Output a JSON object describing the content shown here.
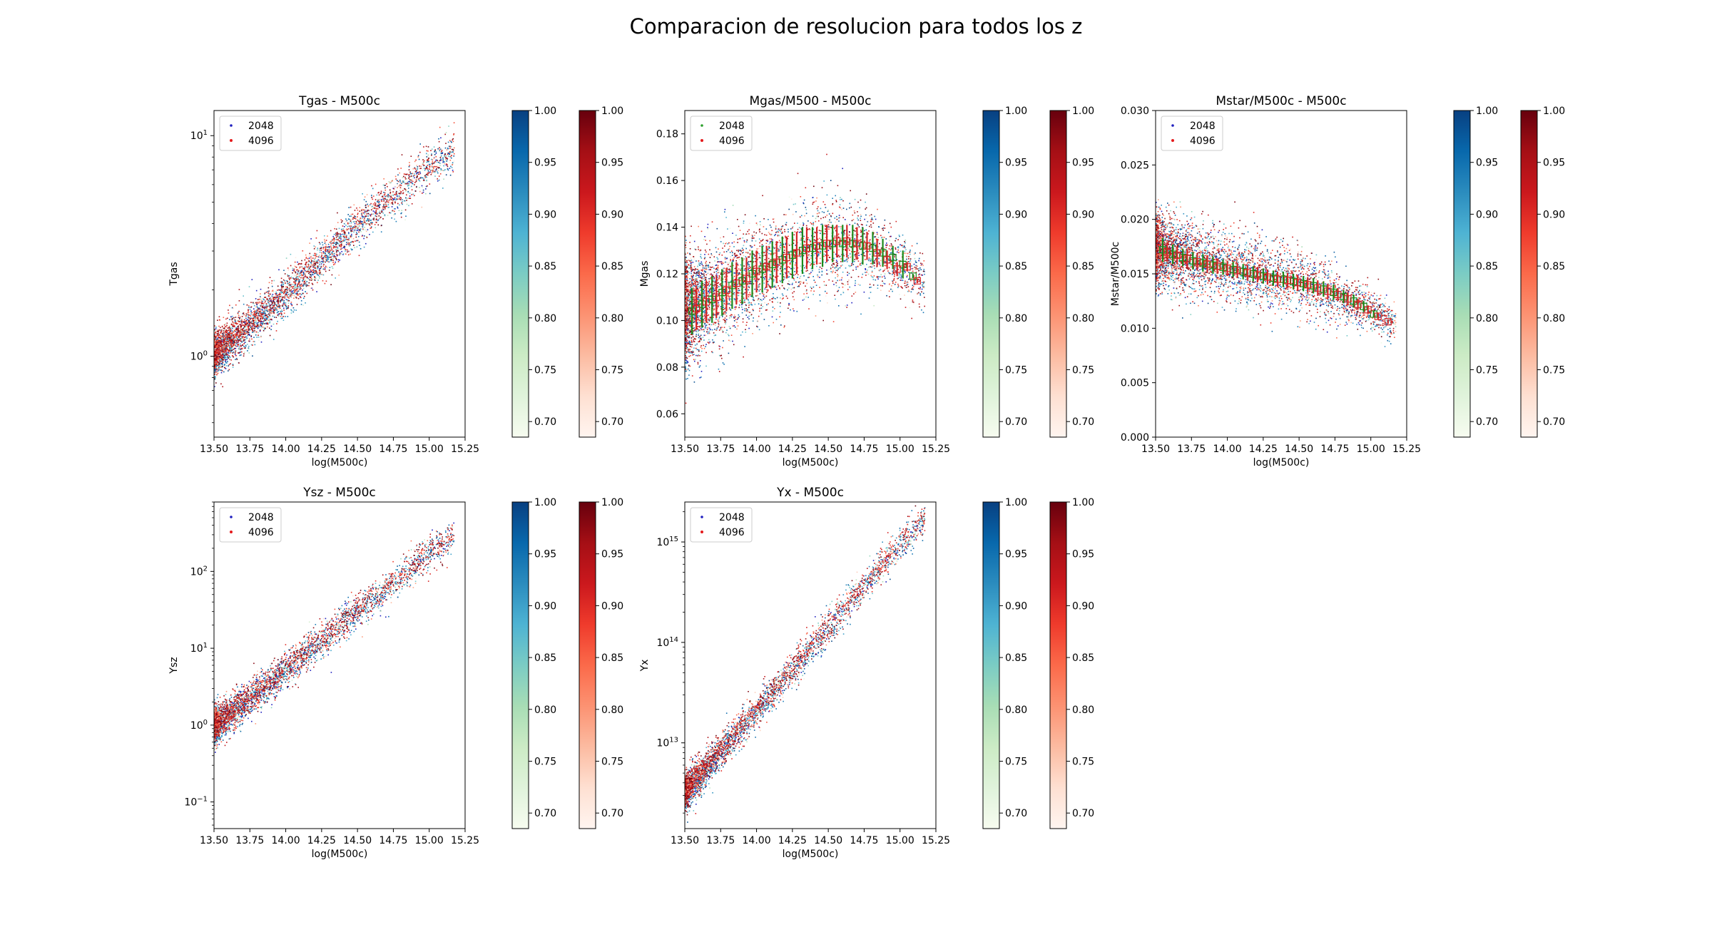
{
  "figure": {
    "title": "Comparacion de resolucion para todos los z"
  },
  "colorbar": {
    "ticks": [
      "0.70",
      "0.75",
      "0.80",
      "0.85",
      "0.90",
      "0.95",
      "1.00"
    ],
    "range": [
      0.685,
      1.0
    ]
  },
  "colors": {
    "blue": "#2166ac",
    "red": "#d62728",
    "green": "#1a8a1a",
    "marker_2048": "#1f1fbf",
    "marker_4096": "#e41a1c",
    "marker_green": "#2ca02c"
  },
  "chart_data": [
    {
      "type": "scatter",
      "title": "Tgas - M500c",
      "xlabel": "log(M500c)",
      "ylabel": "Tgas",
      "xlim": [
        13.5,
        15.25
      ],
      "ylim": [
        0.43,
        13.0
      ],
      "yscale": "log",
      "xticks": [
        "13.50",
        "13.75",
        "14.00",
        "14.25",
        "14.50",
        "14.75",
        "15.00",
        "15.25"
      ],
      "yticks": [
        {
          "value": 1,
          "label": "10^0"
        },
        {
          "value": 10,
          "label": "10^1"
        }
      ],
      "legend": {
        "entries": [
          "2048",
          "4096"
        ],
        "placement": "upper left"
      },
      "series": [
        {
          "name": "2048",
          "trend": [
            [
              13.5,
              1.0
            ],
            [
              14.0,
              1.9
            ],
            [
              14.5,
              3.9
            ],
            [
              15.0,
              7.2
            ],
            [
              15.2,
              8.8
            ]
          ],
          "spread_dex": 0.05
        },
        {
          "name": "4096",
          "trend": [
            [
              13.5,
              1.05
            ],
            [
              14.0,
              1.95
            ],
            [
              14.5,
              4.0
            ],
            [
              15.0,
              7.4
            ],
            [
              15.2,
              9.0
            ]
          ],
          "spread_dex": 0.05
        }
      ],
      "binned_means": []
    },
    {
      "type": "scatter",
      "title": "Mgas/M500 - M500c",
      "xlabel": "log(M500c)",
      "ylabel": "Mgas",
      "xlim": [
        13.5,
        15.25
      ],
      "ylim": [
        0.05,
        0.19
      ],
      "yscale": "linear",
      "xticks": [
        "13.50",
        "13.75",
        "14.00",
        "14.25",
        "14.50",
        "14.75",
        "15.00",
        "15.25"
      ],
      "yticks": [
        {
          "value": 0.06,
          "label": "0.06"
        },
        {
          "value": 0.08,
          "label": "0.08"
        },
        {
          "value": 0.1,
          "label": "0.10"
        },
        {
          "value": 0.12,
          "label": "0.12"
        },
        {
          "value": 0.14,
          "label": "0.14"
        },
        {
          "value": 0.16,
          "label": "0.16"
        },
        {
          "value": 0.18,
          "label": "0.18"
        }
      ],
      "legend": {
        "entries": [
          "2048",
          "4096"
        ],
        "placement": "upper left"
      },
      "series": [
        {
          "name": "2048",
          "trend": [
            [
              13.5,
              0.104
            ],
            [
              13.75,
              0.111
            ],
            [
              14.0,
              0.119
            ],
            [
              14.25,
              0.128
            ],
            [
              14.5,
              0.133
            ],
            [
              14.75,
              0.131
            ],
            [
              15.0,
              0.124
            ],
            [
              15.15,
              0.118
            ]
          ],
          "spread_lin": 0.011
        },
        {
          "name": "4096",
          "trend": [
            [
              13.5,
              0.105
            ],
            [
              13.75,
              0.112
            ],
            [
              14.0,
              0.121
            ],
            [
              14.25,
              0.129
            ],
            [
              14.5,
              0.134
            ],
            [
              14.75,
              0.132
            ],
            [
              15.0,
              0.123
            ],
            [
              15.15,
              0.117
            ]
          ],
          "spread_lin": 0.011
        }
      ],
      "binned_means": [
        {
          "color": "green",
          "points": [
            [
              13.55,
              0.104,
              0.01
            ],
            [
              13.62,
              0.107,
              0.01
            ],
            [
              13.69,
              0.109,
              0.01
            ],
            [
              13.76,
              0.112,
              0.01
            ],
            [
              13.83,
              0.115,
              0.01
            ],
            [
              13.9,
              0.117,
              0.01
            ],
            [
              13.97,
              0.12,
              0.01
            ],
            [
              14.04,
              0.122,
              0.01
            ],
            [
              14.11,
              0.124,
              0.01
            ],
            [
              14.18,
              0.126,
              0.01
            ],
            [
              14.25,
              0.128,
              0.01
            ],
            [
              14.32,
              0.13,
              0.01
            ],
            [
              14.39,
              0.131,
              0.009
            ],
            [
              14.46,
              0.132,
              0.009
            ],
            [
              14.53,
              0.133,
              0.008
            ],
            [
              14.6,
              0.133,
              0.008
            ],
            [
              14.67,
              0.133,
              0.008
            ],
            [
              14.74,
              0.132,
              0.008
            ],
            [
              14.81,
              0.131,
              0.007
            ],
            [
              14.88,
              0.129,
              0.006
            ],
            [
              14.95,
              0.127,
              0.005
            ],
            [
              15.02,
              0.124,
              0.006
            ],
            [
              15.09,
              0.119,
              0.001
            ]
          ]
        },
        {
          "color": "red",
          "points": [
            [
              13.58,
              0.105,
              0.009
            ],
            [
              13.65,
              0.108,
              0.009
            ],
            [
              13.72,
              0.11,
              0.009
            ],
            [
              13.79,
              0.113,
              0.009
            ],
            [
              13.86,
              0.116,
              0.009
            ],
            [
              13.93,
              0.118,
              0.009
            ],
            [
              14.0,
              0.121,
              0.009
            ],
            [
              14.07,
              0.123,
              0.009
            ],
            [
              14.14,
              0.125,
              0.009
            ],
            [
              14.21,
              0.127,
              0.009
            ],
            [
              14.28,
              0.129,
              0.009
            ],
            [
              14.35,
              0.131,
              0.009
            ],
            [
              14.42,
              0.132,
              0.008
            ],
            [
              14.49,
              0.133,
              0.008
            ],
            [
              14.56,
              0.134,
              0.007
            ],
            [
              14.63,
              0.134,
              0.007
            ],
            [
              14.7,
              0.133,
              0.007
            ],
            [
              14.77,
              0.132,
              0.006
            ],
            [
              14.84,
              0.129,
              0.006
            ],
            [
              14.91,
              0.126,
              0.004
            ],
            [
              14.98,
              0.122,
              0.003
            ],
            [
              15.05,
              0.123,
              0.002
            ],
            [
              15.12,
              0.117,
              0.001
            ]
          ]
        }
      ]
    },
    {
      "type": "scatter",
      "title": "Mstar/M500c - M500c",
      "xlabel": "log(M500c)",
      "ylabel": "Mstar/M500c",
      "xlim": [
        13.5,
        15.25
      ],
      "ylim": [
        0.0,
        0.03
      ],
      "yscale": "linear",
      "xticks": [
        "13.50",
        "13.75",
        "14.00",
        "14.25",
        "14.50",
        "14.75",
        "15.00",
        "15.25"
      ],
      "yticks": [
        {
          "value": 0.0,
          "label": "0.000"
        },
        {
          "value": 0.005,
          "label": "0.005"
        },
        {
          "value": 0.01,
          "label": "0.010"
        },
        {
          "value": 0.015,
          "label": "0.015"
        },
        {
          "value": 0.02,
          "label": "0.020"
        },
        {
          "value": 0.025,
          "label": "0.025"
        },
        {
          "value": 0.03,
          "label": "0.030"
        }
      ],
      "legend": {
        "entries": [
          "2048",
          "4096"
        ],
        "placement": "upper left"
      },
      "series": [
        {
          "name": "2048",
          "trend": [
            [
              13.5,
              0.0172
            ],
            [
              14.0,
              0.0156
            ],
            [
              14.5,
              0.0142
            ],
            [
              14.75,
              0.0131
            ],
            [
              15.0,
              0.0115
            ],
            [
              15.15,
              0.0106
            ]
          ],
          "spread_lin": 0.0016
        },
        {
          "name": "4096",
          "trend": [
            [
              13.5,
              0.0174
            ],
            [
              14.0,
              0.0157
            ],
            [
              14.5,
              0.0143
            ],
            [
              14.75,
              0.0132
            ],
            [
              15.0,
              0.0116
            ],
            [
              15.15,
              0.0107
            ]
          ],
          "spread_lin": 0.0016
        }
      ],
      "binned_means": [
        {
          "color": "green",
          "points": [
            [
              13.55,
              0.0172,
              0.0011
            ],
            [
              13.62,
              0.0168,
              0.0009
            ],
            [
              13.69,
              0.0165,
              0.0008
            ],
            [
              13.76,
              0.0162,
              0.0008
            ],
            [
              13.83,
              0.016,
              0.0008
            ],
            [
              13.9,
              0.0158,
              0.0008
            ],
            [
              13.97,
              0.0156,
              0.0007
            ],
            [
              14.04,
              0.0154,
              0.0007
            ],
            [
              14.11,
              0.0152,
              0.0007
            ],
            [
              14.18,
              0.015,
              0.0007
            ],
            [
              14.25,
              0.0148,
              0.0007
            ],
            [
              14.32,
              0.0146,
              0.0007
            ],
            [
              14.39,
              0.0145,
              0.0007
            ],
            [
              14.46,
              0.0143,
              0.0007
            ],
            [
              14.53,
              0.0141,
              0.0007
            ],
            [
              14.6,
              0.0139,
              0.0007
            ],
            [
              14.67,
              0.0136,
              0.0007
            ],
            [
              14.74,
              0.0133,
              0.0007
            ],
            [
              14.81,
              0.0129,
              0.0006
            ],
            [
              14.88,
              0.0125,
              0.0006
            ],
            [
              14.95,
              0.012,
              0.0005
            ],
            [
              15.02,
              0.0113,
              0.0003
            ]
          ]
        },
        {
          "color": "red",
          "points": [
            [
              13.58,
              0.017,
              0.0009
            ],
            [
              13.65,
              0.0167,
              0.0008
            ],
            [
              13.72,
              0.0164,
              0.0008
            ],
            [
              13.79,
              0.0161,
              0.0008
            ],
            [
              13.86,
              0.0159,
              0.0008
            ],
            [
              13.93,
              0.0157,
              0.0007
            ],
            [
              14.0,
              0.0155,
              0.0007
            ],
            [
              14.07,
              0.0153,
              0.0007
            ],
            [
              14.14,
              0.0151,
              0.0007
            ],
            [
              14.21,
              0.0149,
              0.0007
            ],
            [
              14.28,
              0.0147,
              0.0007
            ],
            [
              14.35,
              0.0145,
              0.0007
            ],
            [
              14.42,
              0.0144,
              0.0007
            ],
            [
              14.49,
              0.0142,
              0.0007
            ],
            [
              14.56,
              0.014,
              0.0007
            ],
            [
              14.63,
              0.0137,
              0.0007
            ],
            [
              14.7,
              0.0134,
              0.0007
            ],
            [
              14.77,
              0.0131,
              0.0006
            ],
            [
              14.84,
              0.0127,
              0.0006
            ],
            [
              14.91,
              0.0122,
              0.0005
            ],
            [
              14.98,
              0.0117,
              0.0004
            ],
            [
              15.05,
              0.0111,
              0.0003
            ],
            [
              15.12,
              0.0106,
              0.0002
            ]
          ]
        }
      ]
    },
    {
      "type": "scatter",
      "title": "Ysz - M500c",
      "xlabel": "log(M500c)",
      "ylabel": "Ysz",
      "xlim": [
        13.5,
        15.25
      ],
      "ylim": [
        0.045,
        800
      ],
      "yscale": "log",
      "xticks": [
        "13.50",
        "13.75",
        "14.00",
        "14.25",
        "14.50",
        "14.75",
        "15.00",
        "15.25"
      ],
      "yticks": [
        {
          "value": 0.1,
          "label": "10^-1"
        },
        {
          "value": 1,
          "label": "10^0"
        },
        {
          "value": 10,
          "label": "10^1"
        },
        {
          "value": 100,
          "label": "10^2"
        }
      ],
      "legend": {
        "entries": [
          "2048",
          "4096"
        ],
        "placement": "upper left"
      },
      "series": [
        {
          "name": "2048",
          "trend": [
            [
              13.5,
              0.95
            ],
            [
              14.0,
              5.2
            ],
            [
              14.5,
              30
            ],
            [
              15.0,
              170
            ],
            [
              15.2,
              330
            ]
          ],
          "spread_dex": 0.12
        },
        {
          "name": "4096",
          "trend": [
            [
              13.5,
              1.0
            ],
            [
              14.0,
              5.5
            ],
            [
              14.5,
              32
            ],
            [
              15.0,
              175
            ],
            [
              15.2,
              340
            ]
          ],
          "spread_dex": 0.12
        }
      ],
      "binned_means": []
    },
    {
      "type": "scatter",
      "title": "Yx - M500c",
      "xlabel": "log(M500c)",
      "ylabel": "Yx",
      "xlim": [
        13.5,
        15.25
      ],
      "ylim": [
        1400000000000.0,
        2500000000000000.0
      ],
      "yscale": "log",
      "xticks": [
        "13.50",
        "13.75",
        "14.00",
        "14.25",
        "14.50",
        "14.75",
        "15.00",
        "15.25"
      ],
      "yticks": [
        {
          "value": 10000000000000.0,
          "label": "10^13"
        },
        {
          "value": 100000000000000.0,
          "label": "10^14"
        },
        {
          "value": 1000000000000000.0,
          "label": "10^15"
        }
      ],
      "legend": {
        "entries": [
          "2048",
          "4096"
        ],
        "placement": "upper left"
      },
      "series": [
        {
          "name": "2048",
          "trend": [
            [
              13.5,
              3200000000000.0
            ],
            [
              14.0,
              21000000000000.0
            ],
            [
              14.5,
              140000000000000.0
            ],
            [
              15.0,
              950000000000000.0
            ],
            [
              15.2,
              1900000000000000.0
            ]
          ],
          "spread_dex": 0.09
        },
        {
          "name": "4096",
          "trend": [
            [
              13.5,
              3400000000000.0
            ],
            [
              14.0,
              22000000000000.0
            ],
            [
              14.5,
              145000000000000.0
            ],
            [
              15.0,
              980000000000000.0
            ],
            [
              15.2,
              2000000000000000.0
            ]
          ],
          "spread_dex": 0.09
        }
      ],
      "binned_means": []
    }
  ]
}
